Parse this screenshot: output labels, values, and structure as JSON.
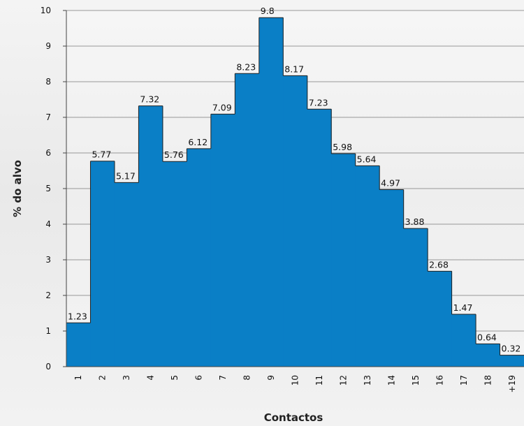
{
  "chart_data": {
    "type": "bar",
    "title": "",
    "xlabel": "Contactos",
    "ylabel": "% do alvo",
    "ylim": [
      0,
      10
    ],
    "yticks": [
      0,
      1,
      2,
      3,
      4,
      5,
      6,
      7,
      8,
      9,
      10
    ],
    "grid": true,
    "bar_color": "#0a7fc6",
    "categories": [
      "1",
      "2",
      "3",
      "4",
      "5",
      "6",
      "7",
      "8",
      "9",
      "10",
      "11",
      "12",
      "13",
      "14",
      "15",
      "16",
      "17",
      "18",
      "+19"
    ],
    "values": [
      1.23,
      5.77,
      5.17,
      7.32,
      5.76,
      6.12,
      7.09,
      8.23,
      9.8,
      8.17,
      7.23,
      5.98,
      5.64,
      4.97,
      3.88,
      2.68,
      1.47,
      0.64,
      0.32
    ],
    "value_labels": [
      "1.23",
      "5.77",
      "5.17",
      "7.32",
      "5.76",
      "6.12",
      "7.09",
      "8.23",
      "9.8",
      "8.17",
      "7.23",
      "5.98",
      "5.64",
      "4.97",
      "3.88",
      "2.68",
      "1.47",
      "0.64",
      "0.32"
    ]
  }
}
